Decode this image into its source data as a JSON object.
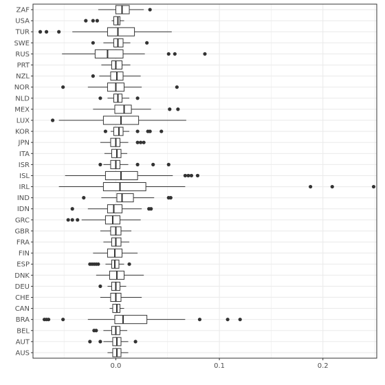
{
  "chart_data": {
    "type": "boxplot",
    "orientation": "horizontal",
    "title": "",
    "xlabel": "",
    "ylabel": "",
    "xlim": [
      -0.08,
      0.252
    ],
    "x_ticks": [
      0.0,
      0.1,
      0.2
    ],
    "x_tick_labels": [
      "0.0",
      "0.1",
      "0.2"
    ],
    "grid": true,
    "colors": {
      "box_line": "#333333",
      "box_fill": "#ffffff",
      "grid": "#ebebeb",
      "border": "#333333",
      "point": "#333333"
    },
    "categories": [
      "ZAF",
      "USA",
      "TUR",
      "SWE",
      "RUS",
      "PRT",
      "NZL",
      "NOR",
      "NLD",
      "MEX",
      "LUX",
      "KOR",
      "JPN",
      "ITA",
      "ISR",
      "ISL",
      "IRL",
      "IND",
      "IDN",
      "GRC",
      "GBR",
      "FRA",
      "FIN",
      "ESP",
      "DNK",
      "DEU",
      "CHE",
      "CAN",
      "BRA",
      "BEL",
      "AUT",
      "AUS"
    ],
    "boxes": [
      {
        "country": "ZAF",
        "whisker_low": -0.017,
        "q1": 0.0,
        "median": 0.006,
        "q3": 0.013,
        "whisker_high": 0.027,
        "outliers": [
          0.033
        ]
      },
      {
        "country": "USA",
        "whisker_low": -0.004,
        "q1": -0.002,
        "median": 0.002,
        "q3": 0.004,
        "whisker_high": 0.008,
        "outliers": [
          -0.029,
          -0.022,
          -0.018
        ]
      },
      {
        "country": "TUR",
        "whisker_low": -0.042,
        "q1": -0.008,
        "median": 0.002,
        "q3": 0.018,
        "whisker_high": 0.054,
        "outliers": [
          -0.073,
          -0.067,
          -0.055
        ]
      },
      {
        "country": "SWE",
        "whisker_low": -0.012,
        "q1": -0.002,
        "median": 0.002,
        "q3": 0.007,
        "whisker_high": 0.014,
        "outliers": [
          -0.022,
          0.03
        ]
      },
      {
        "country": "RUS",
        "whisker_low": -0.052,
        "q1": -0.02,
        "median": -0.008,
        "q3": 0.007,
        "whisker_high": 0.028,
        "outliers": [
          0.051,
          0.057,
          0.086
        ]
      },
      {
        "country": "PRT",
        "whisker_low": -0.014,
        "q1": -0.004,
        "median": 0.0,
        "q3": 0.006,
        "whisker_high": 0.014,
        "outliers": []
      },
      {
        "country": "NZL",
        "whisker_low": -0.016,
        "q1": -0.005,
        "median": 0.001,
        "q3": 0.007,
        "whisker_high": 0.024,
        "outliers": [
          -0.022
        ]
      },
      {
        "country": "NOR",
        "whisker_low": -0.027,
        "q1": -0.008,
        "median": 0.0,
        "q3": 0.008,
        "whisker_high": 0.025,
        "outliers": [
          -0.051,
          0.059
        ]
      },
      {
        "country": "NLD",
        "whisker_low": -0.008,
        "q1": -0.002,
        "median": 0.002,
        "q3": 0.006,
        "whisker_high": 0.013,
        "outliers": [
          -0.015,
          0.021
        ]
      },
      {
        "country": "MEX",
        "whisker_low": -0.022,
        "q1": -0.001,
        "median": 0.008,
        "q3": 0.015,
        "whisker_high": 0.034,
        "outliers": [
          0.052,
          0.06
        ]
      },
      {
        "country": "LUX",
        "whisker_low": -0.055,
        "q1": -0.012,
        "median": 0.005,
        "q3": 0.022,
        "whisker_high": 0.068,
        "outliers": [
          -0.061
        ]
      },
      {
        "country": "KOR",
        "whisker_low": -0.005,
        "q1": -0.002,
        "median": 0.003,
        "q3": 0.007,
        "whisker_high": 0.013,
        "outliers": [
          -0.01,
          0.021,
          0.031,
          0.033,
          0.044
        ]
      },
      {
        "country": "JPN",
        "whisker_low": -0.015,
        "q1": -0.005,
        "median": 0.0,
        "q3": 0.004,
        "whisker_high": 0.012,
        "outliers": [
          0.021,
          0.024,
          0.027
        ]
      },
      {
        "country": "ITA",
        "whisker_low": -0.011,
        "q1": -0.004,
        "median": 0.001,
        "q3": 0.005,
        "whisker_high": 0.011,
        "outliers": []
      },
      {
        "country": "ISR",
        "whisker_low": -0.012,
        "q1": -0.005,
        "median": 0.0,
        "q3": 0.004,
        "whisker_high": 0.012,
        "outliers": [
          -0.015,
          0.021,
          0.036,
          0.051
        ]
      },
      {
        "country": "ISL",
        "whisker_low": -0.049,
        "q1": -0.01,
        "median": 0.005,
        "q3": 0.021,
        "whisker_high": 0.055,
        "outliers": [
          0.067,
          0.07,
          0.073,
          0.079
        ]
      },
      {
        "country": "IRL",
        "whisker_low": -0.055,
        "q1": -0.012,
        "median": 0.004,
        "q3": 0.029,
        "whisker_high": 0.067,
        "outliers": [
          0.188,
          0.209,
          0.249
        ]
      },
      {
        "country": "IND",
        "whisker_low": -0.014,
        "q1": 0.001,
        "median": 0.006,
        "q3": 0.017,
        "whisker_high": 0.037,
        "outliers": [
          -0.031,
          0.051,
          0.053
        ]
      },
      {
        "country": "IDN",
        "whisker_low": -0.027,
        "q1": -0.008,
        "median": -0.002,
        "q3": 0.006,
        "whisker_high": 0.025,
        "outliers": [
          -0.042,
          0.032,
          0.034
        ]
      },
      {
        "country": "GRC",
        "whisker_low": -0.033,
        "q1": -0.01,
        "median": -0.003,
        "q3": 0.004,
        "whisker_high": 0.024,
        "outliers": [
          -0.046,
          -0.042,
          -0.037
        ]
      },
      {
        "country": "GBR",
        "whisker_low": -0.015,
        "q1": -0.005,
        "median": 0.0,
        "q3": 0.005,
        "whisker_high": 0.015,
        "outliers": []
      },
      {
        "country": "FRA",
        "whisker_low": -0.012,
        "q1": -0.004,
        "median": 0.0,
        "q3": 0.005,
        "whisker_high": 0.013,
        "outliers": []
      },
      {
        "country": "FIN",
        "whisker_low": -0.022,
        "q1": -0.008,
        "median": -0.001,
        "q3": 0.006,
        "whisker_high": 0.021,
        "outliers": []
      },
      {
        "country": "ESP",
        "whisker_low": -0.01,
        "q1": -0.004,
        "median": -0.001,
        "q3": 0.003,
        "whisker_high": 0.008,
        "outliers": [
          -0.025,
          -0.023,
          -0.021,
          -0.019,
          -0.017,
          0.013
        ]
      },
      {
        "country": "DNK",
        "whisker_low": -0.019,
        "q1": -0.006,
        "median": 0.001,
        "q3": 0.008,
        "whisker_high": 0.027,
        "outliers": []
      },
      {
        "country": "DEU",
        "whisker_low": -0.008,
        "q1": -0.004,
        "median": 0.0,
        "q3": 0.004,
        "whisker_high": 0.01,
        "outliers": [
          -0.015
        ]
      },
      {
        "country": "CHE",
        "whisker_low": -0.015,
        "q1": -0.005,
        "median": 0.0,
        "q3": 0.005,
        "whisker_high": 0.025,
        "outliers": []
      },
      {
        "country": "CAN",
        "whisker_low": -0.006,
        "q1": -0.003,
        "median": 0.001,
        "q3": 0.004,
        "whisker_high": 0.008,
        "outliers": []
      },
      {
        "country": "BRA",
        "whisker_low": -0.027,
        "q1": -0.001,
        "median": 0.007,
        "q3": 0.03,
        "whisker_high": 0.067,
        "outliers": [
          -0.069,
          -0.067,
          -0.065,
          -0.051,
          0.081,
          0.108,
          0.12
        ]
      },
      {
        "country": "BEL",
        "whisker_low": -0.012,
        "q1": -0.004,
        "median": 0.0,
        "q3": 0.004,
        "whisker_high": 0.011,
        "outliers": [
          -0.021,
          -0.019
        ]
      },
      {
        "country": "AUT",
        "whisker_low": -0.012,
        "q1": -0.003,
        "median": 0.001,
        "q3": 0.005,
        "whisker_high": 0.012,
        "outliers": [
          -0.025,
          -0.015,
          0.019
        ]
      },
      {
        "country": "AUS",
        "whisker_low": -0.008,
        "q1": -0.003,
        "median": 0.001,
        "q3": 0.005,
        "whisker_high": 0.012,
        "outliers": []
      }
    ]
  }
}
